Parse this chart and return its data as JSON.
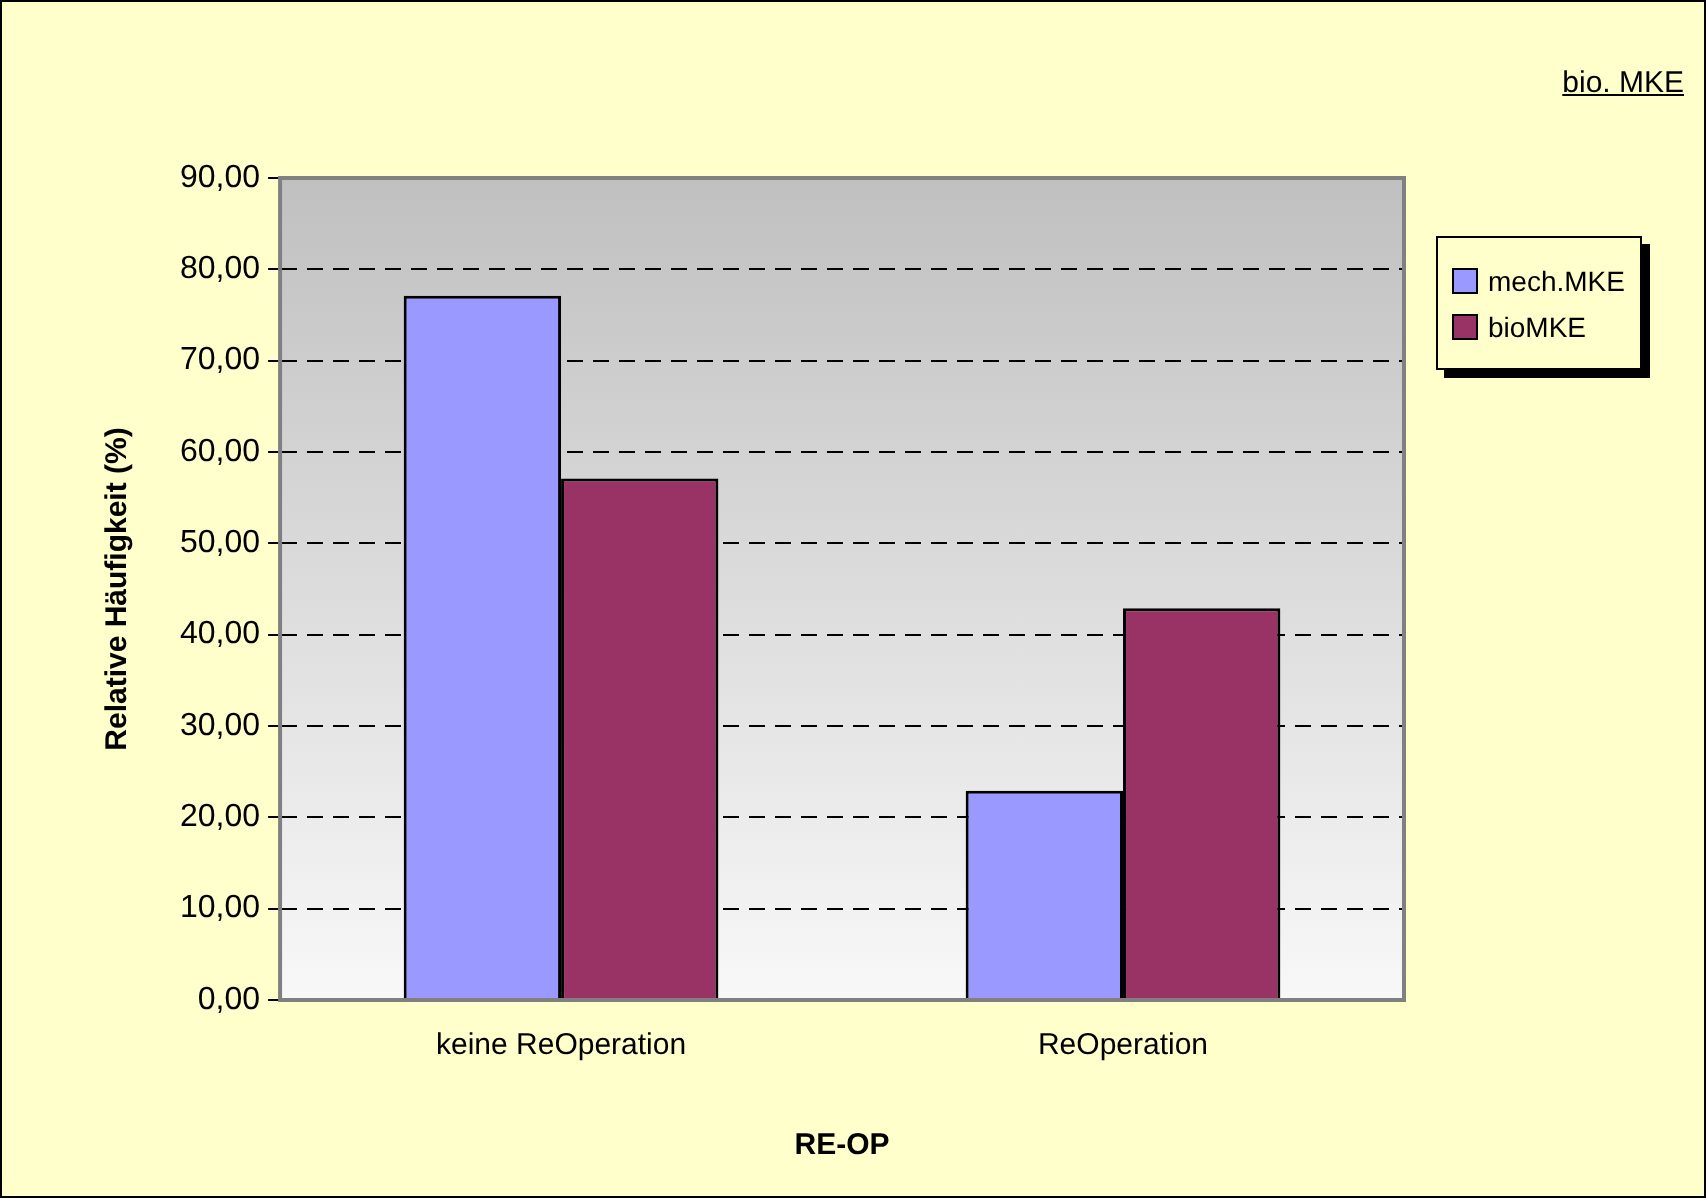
{
  "chart_data": {
    "type": "bar",
    "title": "bio. MKE",
    "xlabel": "RE-OP",
    "ylabel": "Relative Häufigkeit (%)",
    "categories": [
      "keine ReOperation",
      "ReOperation"
    ],
    "series": [
      {
        "name": "mech.MKE",
        "color": "#9999ff",
        "values": [
          77.1,
          22.9
        ]
      },
      {
        "name": "bioMKE",
        "color": "#993366",
        "values": [
          57.1,
          42.9
        ]
      }
    ],
    "ylim": [
      0,
      90
    ],
    "yticks": [
      {
        "value": 0,
        "label": "0,00"
      },
      {
        "value": 10,
        "label": "10,00"
      },
      {
        "value": 20,
        "label": "20,00"
      },
      {
        "value": 30,
        "label": "30,00"
      },
      {
        "value": 40,
        "label": "40,00"
      },
      {
        "value": 50,
        "label": "50,00"
      },
      {
        "value": 60,
        "label": "60,00"
      },
      {
        "value": 70,
        "label": "70,00"
      },
      {
        "value": 80,
        "label": "80,00"
      },
      {
        "value": 90,
        "label": "90,00"
      }
    ],
    "grid": "y",
    "legend": "right"
  }
}
